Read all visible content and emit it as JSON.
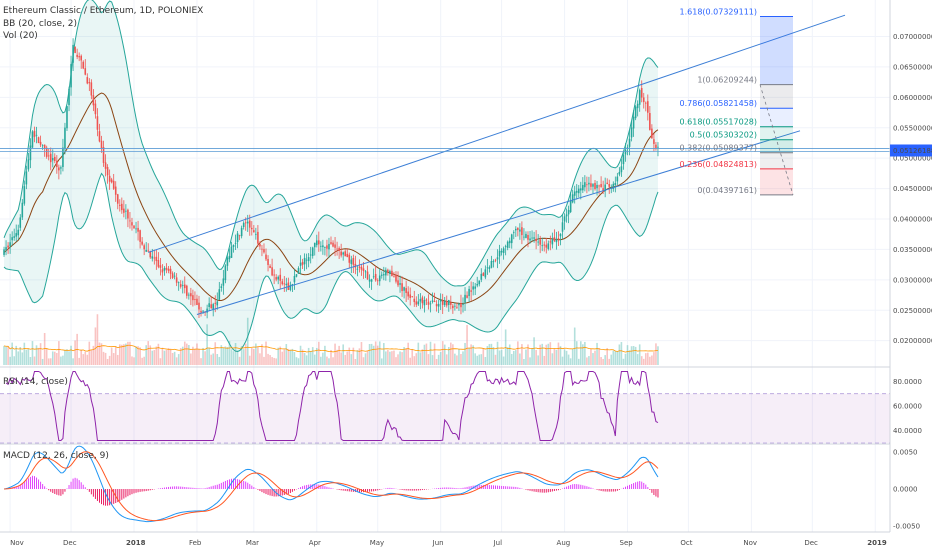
{
  "header": {
    "symbol_line": "Ethereum Classic / Ethereum, 1D, POLONIEX",
    "bb_label": "BB (20, close, 2)",
    "vol_label": "Vol (20)",
    "rsi_label": "RSI (14, close)",
    "macd_label": "MACD (12, 26, close, 9)"
  },
  "price_axis": [
    "0.07000000",
    "0.06500000",
    "0.06000000",
    "0.05500000",
    "0.05000000",
    "0.04500000",
    "0.04000000",
    "0.03500000",
    "0.03000000",
    "0.02500000",
    "0.02000000"
  ],
  "current_price": "0.05126188",
  "rsi_axis": [
    "80.0000",
    "60.0000",
    "40.0000"
  ],
  "macd_axis": [
    "0.0050",
    "0.0000",
    "-0.0050"
  ],
  "time_axis": [
    "Nov",
    "Dec",
    "2018",
    "Feb",
    "Mar",
    "Apr",
    "May",
    "Jun",
    "Jul",
    "Aug",
    "Sep",
    "Oct",
    "Nov",
    "Dec",
    "2019"
  ],
  "fib_levels": [
    {
      "ratio": "1.618",
      "value": "0.07329111",
      "color": "#2962ff"
    },
    {
      "ratio": "1",
      "value": "0.06209244",
      "color": "#787b86"
    },
    {
      "ratio": "0.786",
      "value": "0.05821458",
      "color": "#2962ff"
    },
    {
      "ratio": "0.618",
      "value": "0.05517028",
      "color": "#089981"
    },
    {
      "ratio": "0.5",
      "value": "0.05303202",
      "color": "#089981"
    },
    {
      "ratio": "0.382",
      "value": "0.05089377",
      "color": "#787b86"
    },
    {
      "ratio": "0.236",
      "value": "0.04824813",
      "color": "#f23645"
    },
    {
      "ratio": "0",
      "value": "0.04397161",
      "color": "#787b86"
    }
  ],
  "colors": {
    "up": "#26a69a",
    "down": "#ef5350",
    "bb": "#26a69a",
    "basis": "#8b4513",
    "trend": "#3d7fd6",
    "rsi": "#8e24aa",
    "macd": "#2196f3",
    "signal": "#ff5722"
  },
  "chart_data": {
    "type": "candlestick",
    "title": "Ethereum Classic / Ethereum, 1D, POLONIEX",
    "x_range": [
      "2017-10-28",
      "2018-09-17"
    ],
    "y_range": [
      0.016,
      0.076
    ],
    "indicators": [
      "BB (20, close, 2)",
      "Vol (20)",
      "RSI (14, close)",
      "MACD (12, 26, close, 9)"
    ],
    "close_series": [
      {
        "date": "2017-10-29",
        "close": 0.0345
      },
      {
        "date": "2017-11-05",
        "close": 0.0385
      },
      {
        "date": "2017-11-12",
        "close": 0.0545
      },
      {
        "date": "2017-11-19",
        "close": 0.0505
      },
      {
        "date": "2017-11-26",
        "close": 0.048
      },
      {
        "date": "2017-12-02",
        "close": 0.0685
      },
      {
        "date": "2017-12-06",
        "close": 0.0655
      },
      {
        "date": "2017-12-10",
        "close": 0.062
      },
      {
        "date": "2017-12-17",
        "close": 0.0495
      },
      {
        "date": "2017-12-24",
        "close": 0.043
      },
      {
        "date": "2017-12-31",
        "close": 0.0395
      },
      {
        "date": "2018-01-07",
        "close": 0.0345
      },
      {
        "date": "2018-01-14",
        "close": 0.032
      },
      {
        "date": "2018-01-21",
        "close": 0.0305
      },
      {
        "date": "2018-01-28",
        "close": 0.0275
      },
      {
        "date": "2018-02-04",
        "close": 0.0245
      },
      {
        "date": "2018-02-11",
        "close": 0.027
      },
      {
        "date": "2018-02-18",
        "close": 0.0355
      },
      {
        "date": "2018-02-25",
        "close": 0.0395
      },
      {
        "date": "2018-03-04",
        "close": 0.036
      },
      {
        "date": "2018-03-11",
        "close": 0.0305
      },
      {
        "date": "2018-03-18",
        "close": 0.0285
      },
      {
        "date": "2018-03-25",
        "close": 0.033
      },
      {
        "date": "2018-04-01",
        "close": 0.036
      },
      {
        "date": "2018-04-08",
        "close": 0.0355
      },
      {
        "date": "2018-04-15",
        "close": 0.034
      },
      {
        "date": "2018-04-22",
        "close": 0.0315
      },
      {
        "date": "2018-04-29",
        "close": 0.03
      },
      {
        "date": "2018-05-06",
        "close": 0.0315
      },
      {
        "date": "2018-05-13",
        "close": 0.0285
      },
      {
        "date": "2018-05-20",
        "close": 0.0265
      },
      {
        "date": "2018-05-27",
        "close": 0.026
      },
      {
        "date": "2018-06-03",
        "close": 0.0265
      },
      {
        "date": "2018-06-10",
        "close": 0.0255
      },
      {
        "date": "2018-06-17",
        "close": 0.029
      },
      {
        "date": "2018-06-24",
        "close": 0.032
      },
      {
        "date": "2018-07-01",
        "close": 0.035
      },
      {
        "date": "2018-07-08",
        "close": 0.038
      },
      {
        "date": "2018-07-15",
        "close": 0.037
      },
      {
        "date": "2018-07-22",
        "close": 0.0355
      },
      {
        "date": "2018-07-29",
        "close": 0.037
      },
      {
        "date": "2018-08-05",
        "close": 0.044
      },
      {
        "date": "2018-08-12",
        "close": 0.046
      },
      {
        "date": "2018-08-19",
        "close": 0.045
      },
      {
        "date": "2018-08-26",
        "close": 0.0455
      },
      {
        "date": "2018-09-02",
        "close": 0.0535
      },
      {
        "date": "2018-09-07",
        "close": 0.061
      },
      {
        "date": "2018-09-10",
        "close": 0.059
      },
      {
        "date": "2018-09-13",
        "close": 0.053
      },
      {
        "date": "2018-09-16",
        "close": 0.0513
      }
    ]
  }
}
